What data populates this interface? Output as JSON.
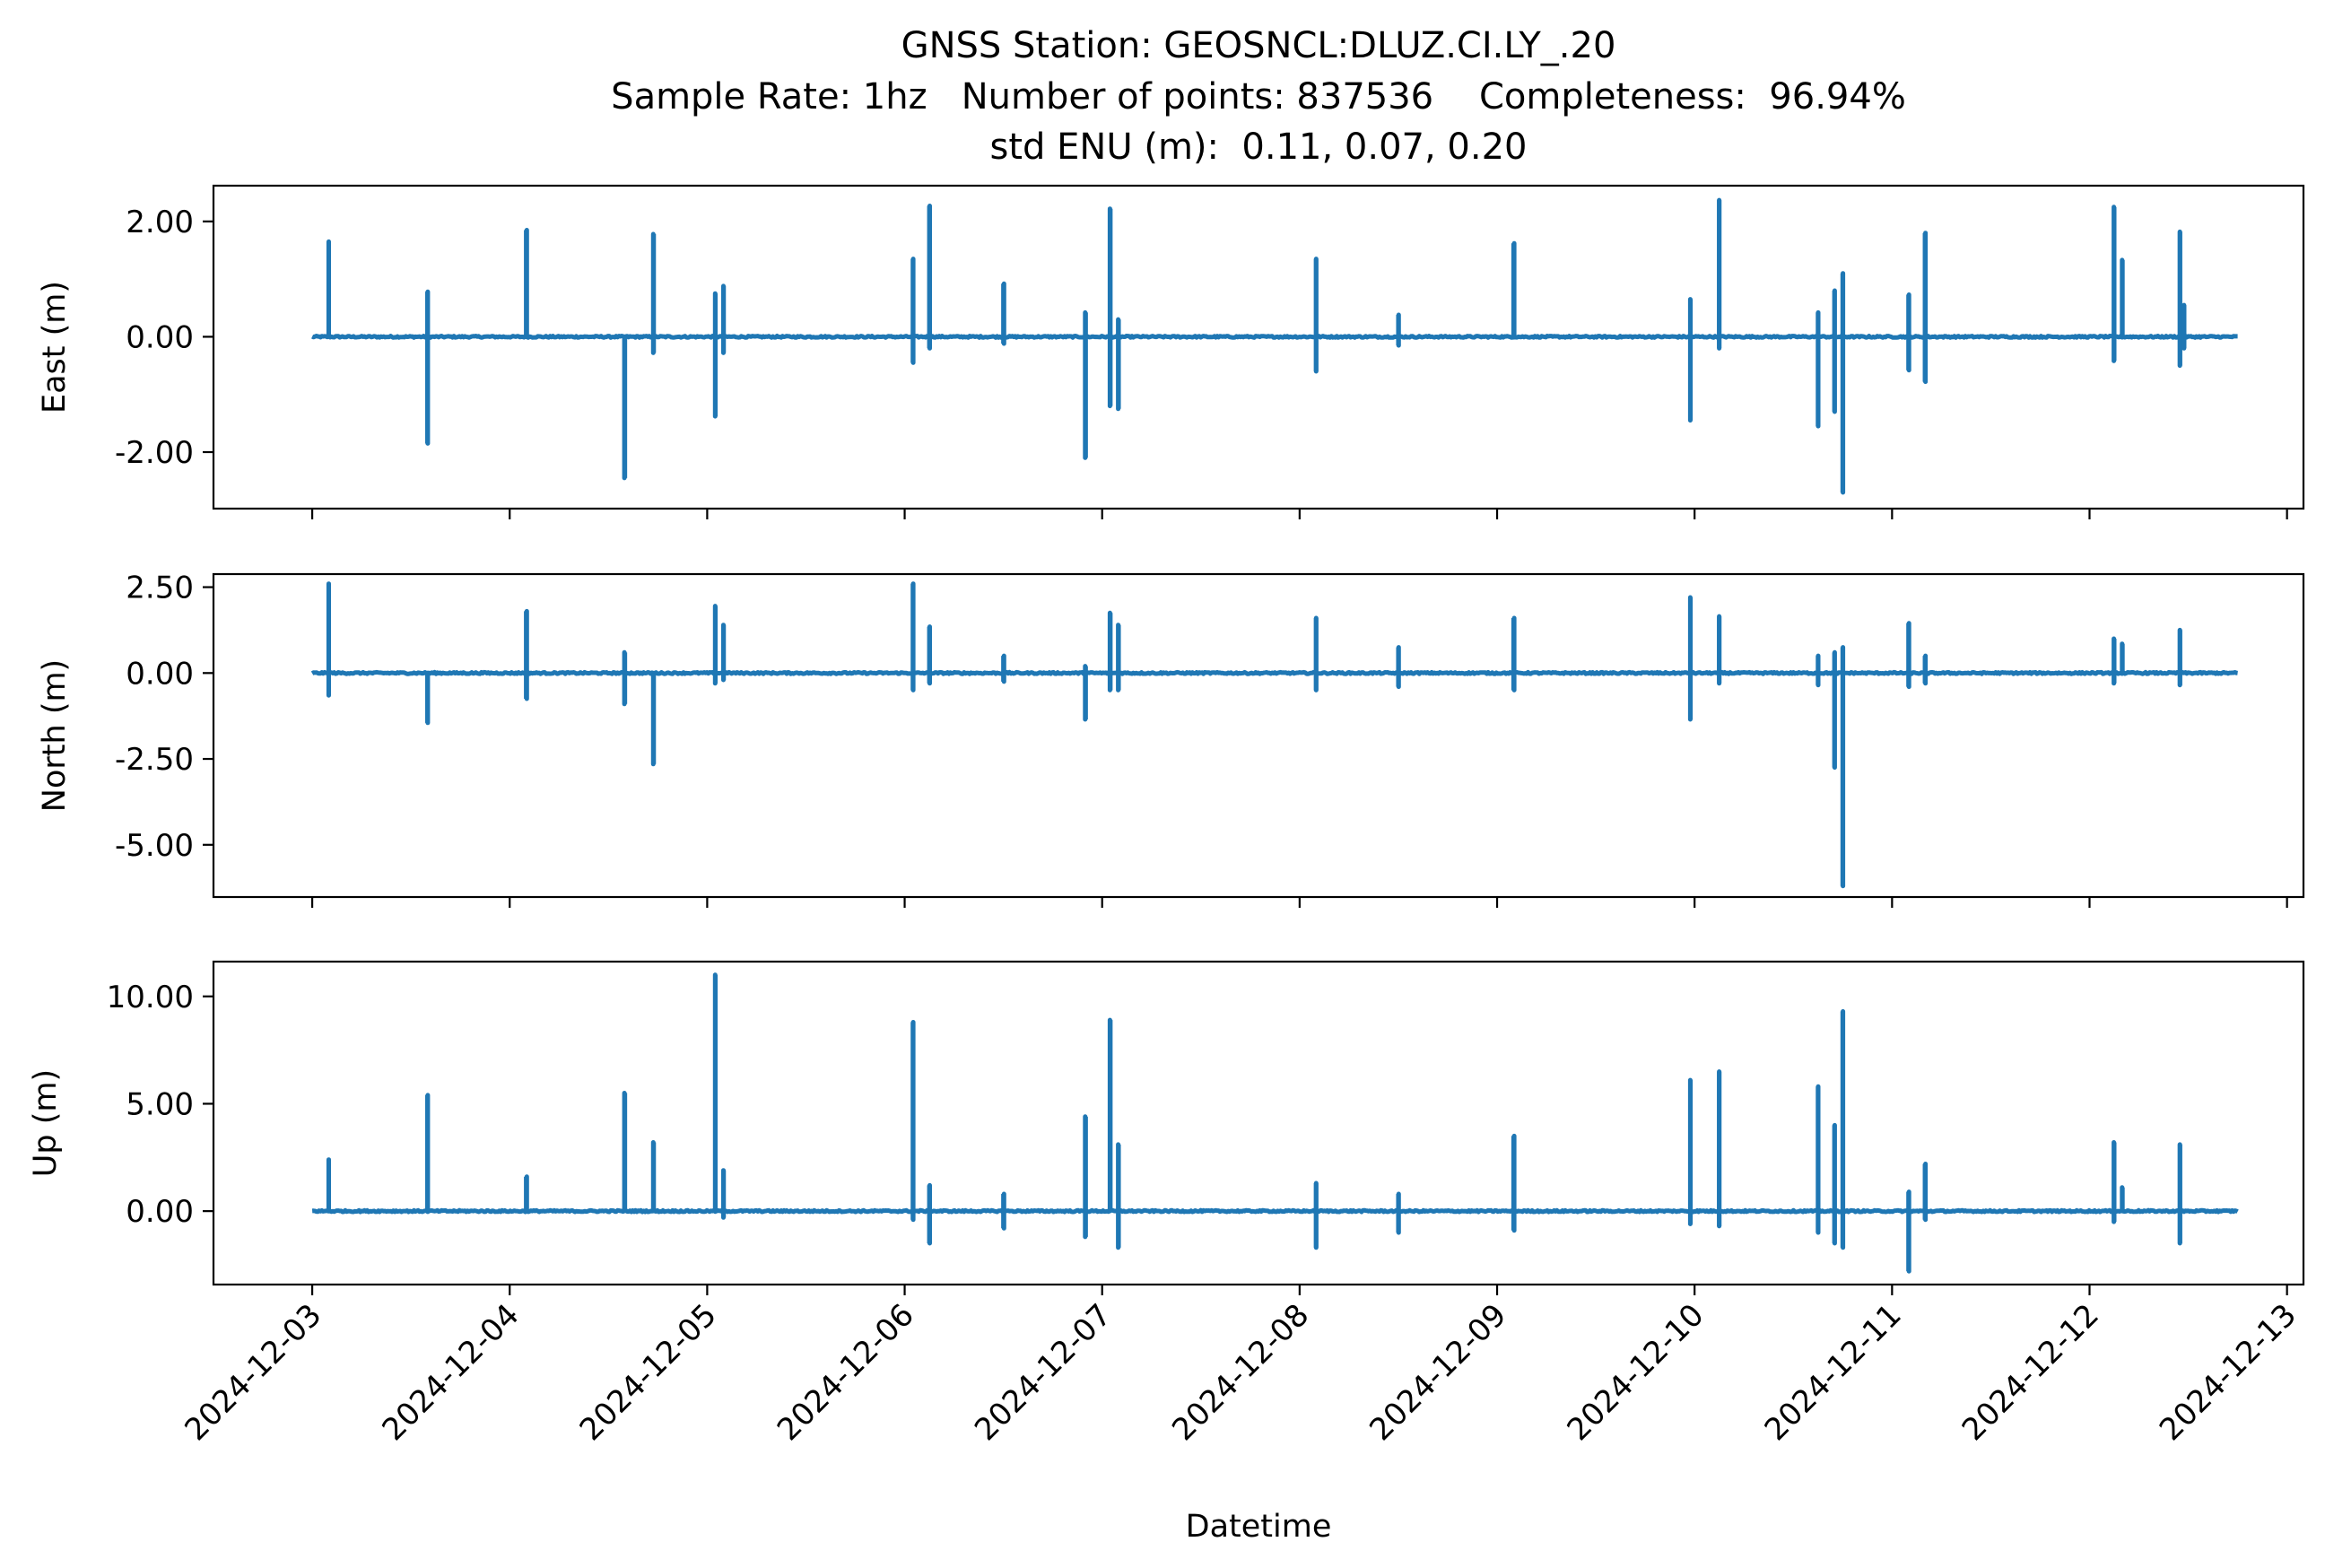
{
  "chart_data": {
    "type": "line",
    "title": [
      "GNSS Station: GEOSNCL:DLUZ.CI.LY_.20",
      "Sample Rate: 1hz   Number of points: 837536    Completeness:  96.94%",
      "std ENU (m):  0.11, 0.07, 0.20"
    ],
    "xlabel": "Datetime",
    "x_range": [
      "2024-12-02T12:00",
      "2024-12-13T02:00"
    ],
    "x_ticks": [
      "2024-12-03",
      "2024-12-04",
      "2024-12-05",
      "2024-12-06",
      "2024-12-07",
      "2024-12-08",
      "2024-12-09",
      "2024-12-10",
      "2024-12-11",
      "2024-12-12",
      "2024-12-13"
    ],
    "x_extent": [
      "2024-12-03T00:00",
      "2024-12-12T18:00"
    ],
    "line_color": "#1f77b4",
    "grid": false,
    "panels": [
      {
        "ylabel": "East (m)",
        "ylim": [
          -2.98,
          2.62
        ],
        "yticks": [
          2.0,
          0.0,
          -2.0
        ],
        "ytick_labels": [
          "2.00",
          "0.00",
          "-2.00"
        ],
        "spikes": [
          [
            "2024-12-03T02:00",
            1.65,
            0.0
          ],
          [
            "2024-12-03T14:00",
            0.78,
            -1.85
          ],
          [
            "2024-12-04T02:00",
            1.85,
            0.0
          ],
          [
            "2024-12-04T14:00",
            0.0,
            -2.45
          ],
          [
            "2024-12-04T17:30",
            1.78,
            -0.28
          ],
          [
            "2024-12-05T01:00",
            0.75,
            -1.38
          ],
          [
            "2024-12-05T02:00",
            0.88,
            -0.28
          ],
          [
            "2024-12-06T01:00",
            1.35,
            -0.45
          ],
          [
            "2024-12-06T03:00",
            2.27,
            -0.2
          ],
          [
            "2024-12-06T12:00",
            0.92,
            -0.12
          ],
          [
            "2024-12-06T22:00",
            0.42,
            -2.1
          ],
          [
            "2024-12-07T01:00",
            2.22,
            -1.2
          ],
          [
            "2024-12-07T02:00",
            0.3,
            -1.25
          ],
          [
            "2024-12-08T02:00",
            1.35,
            -0.6
          ],
          [
            "2024-12-08T12:00",
            0.38,
            -0.15
          ],
          [
            "2024-12-09T02:00",
            1.62,
            0.0
          ],
          [
            "2024-12-09T23:30",
            0.65,
            -1.45
          ],
          [
            "2024-12-10T03:00",
            2.37,
            -0.2
          ],
          [
            "2024-12-10T15:00",
            0.42,
            -1.55
          ],
          [
            "2024-12-10T17:00",
            0.8,
            -1.3
          ],
          [
            "2024-12-10T18:00",
            1.1,
            -2.7
          ],
          [
            "2024-12-11T02:00",
            0.73,
            -0.58
          ],
          [
            "2024-12-11T04:00",
            1.8,
            -0.78
          ],
          [
            "2024-12-12T03:00",
            2.25,
            -0.42
          ],
          [
            "2024-12-12T04:00",
            1.33,
            0.0
          ],
          [
            "2024-12-12T11:00",
            1.82,
            -0.5
          ],
          [
            "2024-12-12T11:30",
            0.55,
            -0.2
          ]
        ]
      },
      {
        "ylabel": "North (m)",
        "ylim": [
          -6.52,
          2.88
        ],
        "yticks": [
          2.5,
          0.0,
          -2.5,
          -5.0
        ],
        "ytick_labels": [
          "2.50",
          "0.00",
          "-2.50",
          "-5.00"
        ],
        "spikes": [
          [
            "2024-12-03T02:00",
            2.6,
            -0.65
          ],
          [
            "2024-12-03T14:00",
            0.0,
            -1.45
          ],
          [
            "2024-12-04T02:00",
            1.8,
            -0.75
          ],
          [
            "2024-12-04T14:00",
            0.6,
            -0.9
          ],
          [
            "2024-12-04T17:30",
            0.0,
            -2.65
          ],
          [
            "2024-12-05T01:00",
            1.95,
            -0.3
          ],
          [
            "2024-12-05T02:00",
            1.4,
            -0.2
          ],
          [
            "2024-12-06T01:00",
            2.6,
            -0.5
          ],
          [
            "2024-12-06T03:00",
            1.35,
            -0.3
          ],
          [
            "2024-12-06T12:00",
            0.5,
            -0.25
          ],
          [
            "2024-12-06T22:00",
            0.2,
            -1.35
          ],
          [
            "2024-12-07T01:00",
            1.75,
            -0.5
          ],
          [
            "2024-12-07T02:00",
            1.4,
            -0.5
          ],
          [
            "2024-12-08T02:00",
            1.6,
            -0.5
          ],
          [
            "2024-12-08T12:00",
            0.75,
            -0.4
          ],
          [
            "2024-12-09T02:00",
            1.6,
            -0.5
          ],
          [
            "2024-12-09T23:30",
            2.2,
            -1.35
          ],
          [
            "2024-12-10T03:00",
            1.65,
            -0.3
          ],
          [
            "2024-12-10T15:00",
            0.5,
            -0.35
          ],
          [
            "2024-12-10T17:00",
            0.6,
            -2.75
          ],
          [
            "2024-12-10T18:00",
            0.75,
            -6.2
          ],
          [
            "2024-12-11T02:00",
            1.45,
            -0.4
          ],
          [
            "2024-12-11T04:00",
            0.5,
            -0.3
          ],
          [
            "2024-12-12T03:00",
            1.0,
            -0.3
          ],
          [
            "2024-12-12T04:00",
            0.85,
            0.0
          ],
          [
            "2024-12-12T11:00",
            1.25,
            -0.35
          ]
        ]
      },
      {
        "ylabel": "Up (m)",
        "ylim": [
          -3.42,
          11.62
        ],
        "yticks": [
          10.0,
          5.0,
          0.0
        ],
        "ytick_labels": [
          "10.00",
          "5.00",
          "0.00"
        ],
        "spikes": [
          [
            "2024-12-03T02:00",
            2.4,
            0.0
          ],
          [
            "2024-12-03T14:00",
            5.4,
            0.0
          ],
          [
            "2024-12-04T02:00",
            1.6,
            0.0
          ],
          [
            "2024-12-04T14:00",
            5.5,
            0.0
          ],
          [
            "2024-12-04T17:30",
            3.2,
            0.0
          ],
          [
            "2024-12-05T01:00",
            11.0,
            0.0
          ],
          [
            "2024-12-05T02:00",
            1.9,
            -0.3
          ],
          [
            "2024-12-06T01:00",
            8.8,
            -0.4
          ],
          [
            "2024-12-06T03:00",
            1.2,
            -1.5
          ],
          [
            "2024-12-06T12:00",
            0.8,
            -0.8
          ],
          [
            "2024-12-06T22:00",
            4.4,
            -1.2
          ],
          [
            "2024-12-07T01:00",
            8.9,
            0.0
          ],
          [
            "2024-12-07T02:00",
            3.1,
            -1.7
          ],
          [
            "2024-12-08T02:00",
            1.3,
            -1.7
          ],
          [
            "2024-12-08T12:00",
            0.8,
            -1.0
          ],
          [
            "2024-12-09T02:00",
            3.5,
            -0.9
          ],
          [
            "2024-12-09T23:30",
            6.1,
            -0.6
          ],
          [
            "2024-12-10T03:00",
            6.5,
            -0.7
          ],
          [
            "2024-12-10T15:00",
            5.8,
            -1.0
          ],
          [
            "2024-12-10T17:00",
            4.0,
            -1.5
          ],
          [
            "2024-12-10T18:00",
            9.3,
            -1.7
          ],
          [
            "2024-12-11T02:00",
            0.9,
            -2.8
          ],
          [
            "2024-12-11T04:00",
            2.2,
            -0.4
          ],
          [
            "2024-12-12T03:00",
            3.2,
            -0.5
          ],
          [
            "2024-12-12T04:00",
            1.1,
            0.0
          ],
          [
            "2024-12-12T11:00",
            3.1,
            -1.5
          ]
        ]
      }
    ]
  }
}
